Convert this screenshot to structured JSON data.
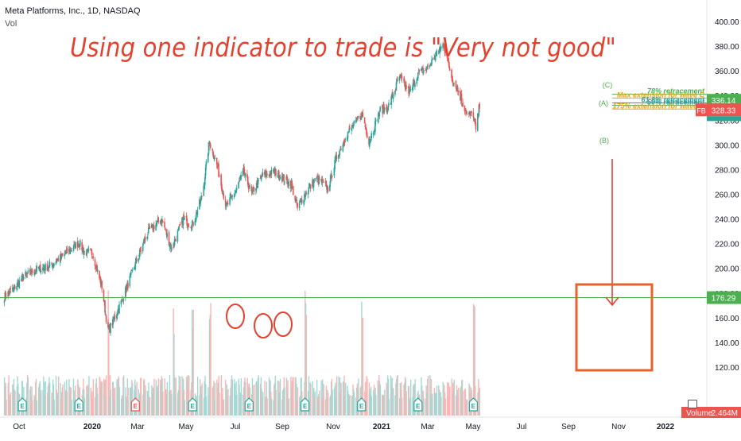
{
  "header": {
    "title": "Meta Platforms, Inc., 1D, NASDAQ",
    "volume_label": "Vol"
  },
  "headline": "Using one indicator to trade is \"Very not good\"",
  "annotations": {
    "wave_a": "(A)",
    "wave_b": "(B)",
    "wave_c": "(C)",
    "fib_levels": [
      {
        "text": "78% retracement",
        "color": "#4caf50"
      },
      {
        "text": "Max extension for wave C",
        "color": "#f0a30a"
      },
      {
        "text": "61.8% retracement",
        "color": "#26a69a"
      },
      {
        "text": "50% retracement",
        "color": "#26a69a"
      },
      {
        "text": "175% extension for wave C",
        "color": "#f0a30a"
      }
    ]
  },
  "price_badges": {
    "top": {
      "value": "336.14",
      "color": "#4caf50"
    },
    "fb_symbol": "FB",
    "fb_value": "328.33",
    "fb_color": "#ef5350",
    "horizontal_line": {
      "value": "176.29",
      "color": "#4caf50"
    },
    "volume_label": "Volume",
    "volume_value": "2.464M"
  },
  "colors": {
    "up": "#26a69a",
    "down": "#ef5350",
    "annotation": "#e4412f",
    "box": "#e8622b"
  },
  "earnings_marker": "E",
  "chart_data": {
    "type": "candlestick",
    "title": "Meta Platforms, Inc., 1D, NASDAQ",
    "y_axis": {
      "ticks": [
        120,
        140,
        160,
        180,
        200,
        220,
        240,
        260,
        280,
        300,
        320,
        340,
        360,
        380,
        400
      ],
      "range": [
        120,
        410
      ],
      "position": "right"
    },
    "x_axis": {
      "ticks": [
        "Oct",
        "2020",
        "Mar",
        "May",
        "Jul",
        "Sep",
        "Nov",
        "2021",
        "Mar",
        "May",
        "Jul",
        "Sep",
        "Nov",
        "2022"
      ]
    },
    "close_anchors": [
      [
        "2019-10-01",
        177
      ],
      [
        "2019-10-15",
        183
      ],
      [
        "2019-11-01",
        193
      ],
      [
        "2019-11-20",
        199
      ],
      [
        "2019-12-10",
        201
      ],
      [
        "2020-01-08",
        212
      ],
      [
        "2020-01-29",
        221
      ],
      [
        "2020-02-07",
        213
      ],
      [
        "2020-02-20",
        212
      ],
      [
        "2020-03-06",
        185
      ],
      [
        "2020-03-16",
        149
      ],
      [
        "2020-03-23",
        156
      ],
      [
        "2020-04-08",
        175
      ],
      [
        "2020-04-30",
        205
      ],
      [
        "2020-05-20",
        230
      ],
      [
        "2020-06-10",
        240
      ],
      [
        "2020-06-26",
        216
      ],
      [
        "2020-07-15",
        240
      ],
      [
        "2020-07-30",
        235
      ],
      [
        "2020-08-15",
        260
      ],
      [
        "2020-08-26",
        303
      ],
      [
        "2020-09-08",
        282
      ],
      [
        "2020-09-22",
        250
      ],
      [
        "2020-10-08",
        263
      ],
      [
        "2020-10-20",
        278
      ],
      [
        "2020-11-02",
        261
      ],
      [
        "2020-11-20",
        275
      ],
      [
        "2020-12-10",
        278
      ],
      [
        "2021-01-05",
        268
      ],
      [
        "2021-01-15",
        249
      ],
      [
        "2021-01-29",
        262
      ],
      [
        "2021-02-15",
        273
      ],
      [
        "2021-03-05",
        265
      ],
      [
        "2021-03-20",
        292
      ],
      [
        "2021-04-05",
        309
      ],
      [
        "2021-04-29",
        325
      ],
      [
        "2021-05-10",
        303
      ],
      [
        "2021-05-28",
        328
      ],
      [
        "2021-06-10",
        330
      ],
      [
        "2021-06-28",
        355
      ],
      [
        "2021-07-15",
        342
      ],
      [
        "2021-07-28",
        358
      ],
      [
        "2021-08-10",
        361
      ],
      [
        "2021-08-25",
        372
      ],
      [
        "2021-09-07",
        382
      ],
      [
        "2021-09-20",
        355
      ],
      [
        "2021-10-01",
        343
      ],
      [
        "2021-10-15",
        324
      ],
      [
        "2021-10-25",
        325
      ],
      [
        "2021-10-29",
        312
      ],
      [
        "2021-11-05",
        336
      ]
    ],
    "volume_spikes": [
      "2020-03-16",
      "2020-06-29",
      "2020-07-30",
      "2020-08-27",
      "2021-01-28",
      "2021-04-29",
      "2021-10-26"
    ],
    "earnings_dates": [
      "2019-10-30",
      "2020-01-29",
      "2020-04-29",
      "2020-07-30",
      "2020-10-29",
      "2021-01-27",
      "2021-04-28",
      "2021-07-28",
      "2021-10-25"
    ],
    "price_lines": {
      "horizontal": 176.29,
      "fib": [
        341,
        338,
        334,
        332,
        329
      ]
    }
  }
}
